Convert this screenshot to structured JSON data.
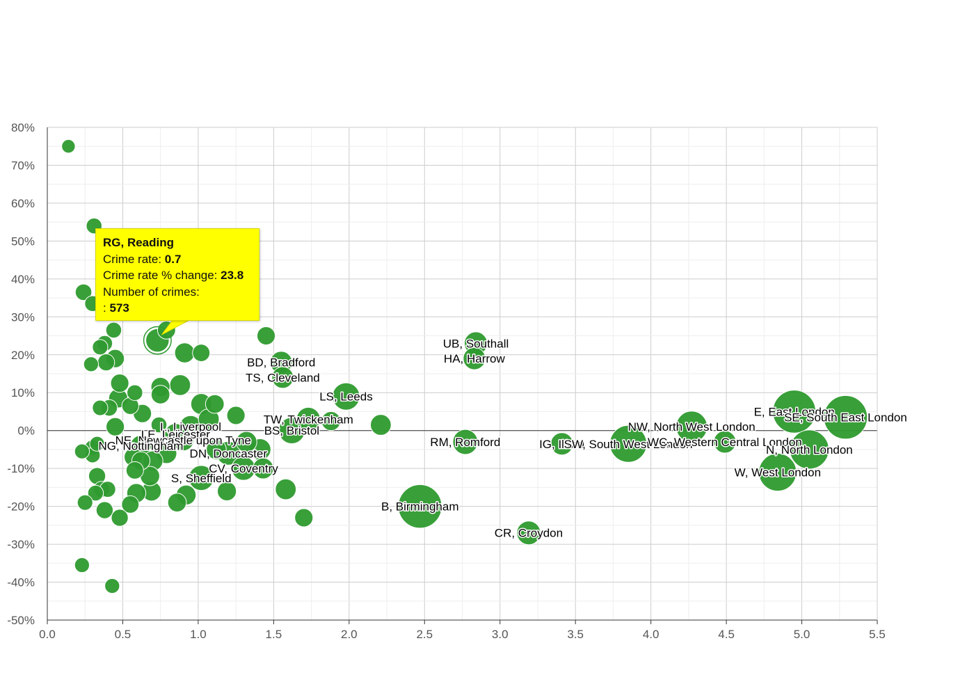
{
  "chart_data": {
    "type": "scatter",
    "bubble": true,
    "color": "#2e9a2e",
    "xlim": [
      0,
      5.5
    ],
    "ylim": [
      -50,
      80
    ],
    "x_ticks": [
      "0.0",
      "0.5",
      "1.0",
      "1.5",
      "2.0",
      "2.5",
      "3.0",
      "3.5",
      "4.0",
      "4.5",
      "5.0",
      "5.5"
    ],
    "y_ticks": [
      "80%",
      "70%",
      "60%",
      "50%",
      "40%",
      "30%",
      "20%",
      "10%",
      "0%",
      "-10%",
      "-20%",
      "-30%",
      "-40%",
      "-50%"
    ],
    "grid": true,
    "points": [
      {
        "x": 0.73,
        "y": 23.8,
        "size": 573,
        "label": "RG, Reading"
      },
      {
        "x": 2.47,
        "y": -20,
        "size": 3000,
        "label": "B, Birmingham"
      },
      {
        "x": 3.19,
        "y": -27,
        "size": 600,
        "label": "CR, Croydon"
      },
      {
        "x": 2.84,
        "y": 23,
        "size": 550,
        "label": "UB, Southall"
      },
      {
        "x": 2.83,
        "y": 19,
        "size": 500,
        "label": "HA, Harrow"
      },
      {
        "x": 1.55,
        "y": 18,
        "size": 480,
        "label": "BD, Bradford"
      },
      {
        "x": 1.56,
        "y": 14,
        "size": 450,
        "label": "TS, Cleveland"
      },
      {
        "x": 1.98,
        "y": 9,
        "size": 900,
        "label": "LS, Leeds"
      },
      {
        "x": 1.73,
        "y": 3,
        "size": 600,
        "label": "TW, Twickenham"
      },
      {
        "x": 1.62,
        "y": 0,
        "size": 800,
        "label": "BS, Bristol"
      },
      {
        "x": 2.77,
        "y": -3,
        "size": 700,
        "label": "RM, Romford"
      },
      {
        "x": 3.41,
        "y": -3.5,
        "size": 500,
        "label": "IG, Ilford"
      },
      {
        "x": 3.85,
        "y": -3.5,
        "size": 2000,
        "label": "SW, South West London"
      },
      {
        "x": 4.27,
        "y": 1,
        "size": 1300,
        "label": "NW, North West London"
      },
      {
        "x": 4.49,
        "y": -3,
        "size": 500,
        "label": "WC, Western Central London"
      },
      {
        "x": 4.95,
        "y": 5,
        "size": 2900,
        "label": "E, East London"
      },
      {
        "x": 5.29,
        "y": 3.5,
        "size": 3000,
        "label": "SE, South East London"
      },
      {
        "x": 5.05,
        "y": -5,
        "size": 2300,
        "label": "N, North London"
      },
      {
        "x": 4.84,
        "y": -11,
        "size": 2100,
        "label": "W, West London"
      },
      {
        "x": 0.95,
        "y": 1,
        "size": 500,
        "label": "L, Liverpool"
      },
      {
        "x": 0.85,
        "y": -1,
        "size": 450,
        "label": "LE, Leicester"
      },
      {
        "x": 0.9,
        "y": -2.5,
        "size": 450,
        "label": "NE, Newcastle upon Tyne"
      },
      {
        "x": 0.62,
        "y": -4,
        "size": 400,
        "label": "NG, Nottingham"
      },
      {
        "x": 1.2,
        "y": -6,
        "size": 600,
        "label": "DN, Doncaster"
      },
      {
        "x": 1.3,
        "y": -10,
        "size": 600,
        "label": "CV, Coventry"
      },
      {
        "x": 1.02,
        "y": -12.5,
        "size": 700,
        "label": "S, Sheffield"
      },
      {
        "x": 0.14,
        "y": 75,
        "size": 80
      },
      {
        "x": 0.31,
        "y": 54,
        "size": 150
      },
      {
        "x": 0.24,
        "y": 36.5,
        "size": 180
      },
      {
        "x": 0.3,
        "y": 33.5,
        "size": 150
      },
      {
        "x": 0.79,
        "y": 26.5,
        "size": 250
      },
      {
        "x": 0.44,
        "y": 26.5,
        "size": 150
      },
      {
        "x": 1.45,
        "y": 25,
        "size": 260
      },
      {
        "x": 0.38,
        "y": 23,
        "size": 150
      },
      {
        "x": 0.35,
        "y": 22,
        "size": 140
      },
      {
        "x": 0.91,
        "y": 20.5,
        "size": 350
      },
      {
        "x": 1.02,
        "y": 20.5,
        "size": 220
      },
      {
        "x": 0.45,
        "y": 19,
        "size": 260
      },
      {
        "x": 0.29,
        "y": 17.5,
        "size": 120
      },
      {
        "x": 0.39,
        "y": 18,
        "size": 200
      },
      {
        "x": 0.48,
        "y": 12.5,
        "size": 260
      },
      {
        "x": 0.75,
        "y": 11.5,
        "size": 300
      },
      {
        "x": 0.88,
        "y": 12,
        "size": 400
      },
      {
        "x": 0.58,
        "y": 10,
        "size": 150
      },
      {
        "x": 0.75,
        "y": 9.5,
        "size": 280
      },
      {
        "x": 0.47,
        "y": 8.5,
        "size": 300
      },
      {
        "x": 1.02,
        "y": 7,
        "size": 400
      },
      {
        "x": 1.11,
        "y": 7,
        "size": 280
      },
      {
        "x": 0.55,
        "y": 6.5,
        "size": 200
      },
      {
        "x": 0.35,
        "y": 6,
        "size": 140
      },
      {
        "x": 0.41,
        "y": 6,
        "size": 180
      },
      {
        "x": 0.63,
        "y": 4.5,
        "size": 260
      },
      {
        "x": 1.25,
        "y": 4,
        "size": 260
      },
      {
        "x": 1.07,
        "y": 3,
        "size": 400
      },
      {
        "x": 1.88,
        "y": 2.5,
        "size": 300
      },
      {
        "x": 2.21,
        "y": 1.5,
        "size": 400
      },
      {
        "x": 0.45,
        "y": 1,
        "size": 260
      },
      {
        "x": 0.74,
        "y": 1.5,
        "size": 150
      },
      {
        "x": 0.33,
        "y": -3.5,
        "size": 120
      },
      {
        "x": 0.3,
        "y": -4.5,
        "size": 140
      },
      {
        "x": 0.23,
        "y": -5.5,
        "size": 120
      },
      {
        "x": 0.3,
        "y": -6.5,
        "size": 130
      },
      {
        "x": 1.32,
        "y": -3,
        "size": 400
      },
      {
        "x": 1.41,
        "y": -5,
        "size": 450
      },
      {
        "x": 1.12,
        "y": -5,
        "size": 350
      },
      {
        "x": 0.79,
        "y": -6,
        "size": 380
      },
      {
        "x": 0.57,
        "y": -7,
        "size": 260
      },
      {
        "x": 0.7,
        "y": -8,
        "size": 350
      },
      {
        "x": 0.62,
        "y": -8,
        "size": 260
      },
      {
        "x": 1.43,
        "y": -10,
        "size": 400
      },
      {
        "x": 0.58,
        "y": -10.5,
        "size": 220
      },
      {
        "x": 0.68,
        "y": -12,
        "size": 320
      },
      {
        "x": 0.33,
        "y": -12,
        "size": 200
      },
      {
        "x": 0.59,
        "y": -16.5,
        "size": 300
      },
      {
        "x": 0.69,
        "y": -16,
        "size": 330
      },
      {
        "x": 1.58,
        "y": -15.5,
        "size": 400
      },
      {
        "x": 1.19,
        "y": -16,
        "size": 300
      },
      {
        "x": 0.92,
        "y": -17,
        "size": 340
      },
      {
        "x": 0.36,
        "y": -15.5,
        "size": 160
      },
      {
        "x": 0.4,
        "y": -15.5,
        "size": 160
      },
      {
        "x": 0.32,
        "y": -16.5,
        "size": 150
      },
      {
        "x": 0.55,
        "y": -19.5,
        "size": 220
      },
      {
        "x": 0.86,
        "y": -19,
        "size": 280
      },
      {
        "x": 0.25,
        "y": -19,
        "size": 140
      },
      {
        "x": 0.38,
        "y": -21,
        "size": 200
      },
      {
        "x": 0.48,
        "y": -23,
        "size": 200
      },
      {
        "x": 1.7,
        "y": -23,
        "size": 260
      },
      {
        "x": 0.23,
        "y": -35.5,
        "size": 120
      },
      {
        "x": 0.43,
        "y": -41,
        "size": 120
      }
    ]
  },
  "tooltip": {
    "title": "RG, Reading",
    "rate_label": "Crime rate: ",
    "rate_value": "0.7",
    "change_label": "Crime rate % change: ",
    "change_value": "23.8",
    "crimes_label": "Number of crimes:",
    "crimes_prefix": ": ",
    "crimes_value": "573"
  }
}
